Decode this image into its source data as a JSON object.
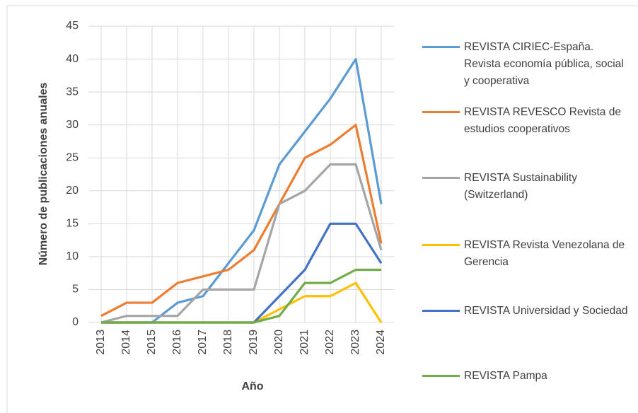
{
  "chart_data": {
    "type": "line",
    "x_label": "Año",
    "y_label": "Número de publicaciones anuales",
    "categories": [
      "2013",
      "2014",
      "2015",
      "2016",
      "2017",
      "2018",
      "2019",
      "2020",
      "2021",
      "2022",
      "2023",
      "2024"
    ],
    "ylim": [
      0,
      45
    ],
    "yticks": [
      0,
      5,
      10,
      15,
      20,
      25,
      30,
      35,
      40,
      45
    ],
    "grid": true,
    "legend": "right",
    "series": [
      {
        "name": "REVISTA CIRIEC-España. Revista economía pública, social y cooperativa",
        "color": "#5b9bd5",
        "values": [
          0,
          0,
          0,
          3,
          4,
          9,
          14,
          24,
          29,
          34,
          40,
          18
        ]
      },
      {
        "name": "REVISTA REVESCO Revista de estudios cooperativos",
        "color": "#ed7d31",
        "values": [
          1,
          3,
          3,
          6,
          7,
          8,
          11,
          18,
          25,
          27,
          30,
          12
        ]
      },
      {
        "name": "REVISTA Sustainability (Switzerland)",
        "color": "#a5a5a5",
        "values": [
          0,
          1,
          1,
          1,
          5,
          5,
          5,
          18,
          20,
          24,
          24,
          11
        ]
      },
      {
        "name": "REVISTA Revista Venezolana de Gerencia",
        "color": "#ffc000",
        "values": [
          0,
          0,
          0,
          0,
          0,
          0,
          0,
          2,
          4,
          4,
          6,
          0
        ]
      },
      {
        "name": "REVISTA Universidad y Sociedad",
        "color": "#4472c4",
        "values": [
          0,
          0,
          0,
          0,
          0,
          0,
          0,
          4,
          8,
          15,
          15,
          9
        ]
      },
      {
        "name": "REVISTA Pampa",
        "color": "#70ad47",
        "values": [
          0,
          0,
          0,
          0,
          0,
          0,
          0,
          1,
          6,
          6,
          8,
          8
        ]
      }
    ]
  }
}
